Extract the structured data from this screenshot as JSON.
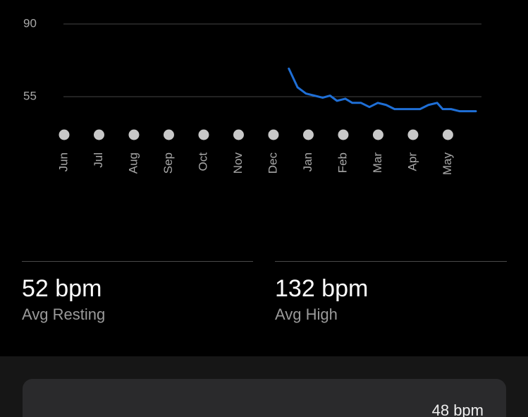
{
  "chart_data": {
    "type": "line",
    "xlim": [
      0,
      11.8
    ],
    "xticks": [
      {
        "value": 0,
        "label": "Jun"
      },
      {
        "value": 1,
        "label": "Jul"
      },
      {
        "value": 2,
        "label": "Aug"
      },
      {
        "value": 3,
        "label": "Sep"
      },
      {
        "value": 4,
        "label": "Oct"
      },
      {
        "value": 5,
        "label": "Nov"
      },
      {
        "value": 6,
        "label": "Dec"
      },
      {
        "value": 7,
        "label": "Jan"
      },
      {
        "value": 8,
        "label": "Feb"
      },
      {
        "value": 9,
        "label": "Mar"
      },
      {
        "value": 10,
        "label": "Apr"
      },
      {
        "value": 11,
        "label": "May"
      }
    ],
    "ylim": [
      45,
      90
    ],
    "yticks": [
      55,
      90
    ],
    "grid": true,
    "series": [
      {
        "name": "Resting",
        "color": "#1f6fd6",
        "x": [
          6.44,
          6.69,
          6.93,
          7.17,
          7.41,
          7.62,
          7.82,
          8.06,
          8.26,
          8.51,
          8.75,
          8.99,
          9.23,
          9.47,
          9.72,
          9.96,
          10.2,
          10.44,
          10.69,
          10.85,
          11.09,
          11.33,
          11.58,
          11.8
        ],
        "values": [
          68.5,
          59.5,
          56.5,
          55.5,
          54.5,
          55.5,
          53,
          54,
          52,
          52,
          50,
          52,
          51,
          49,
          49,
          49,
          49,
          51,
          52,
          49,
          49,
          48,
          48,
          48
        ]
      },
      {
        "name": "High",
        "color": "#e0313a",
        "x": [],
        "values": []
      }
    ]
  },
  "stats": [
    {
      "value": "52 bpm",
      "label": "Avg Resting"
    },
    {
      "value": "132 bpm",
      "label": "Avg High"
    }
  ],
  "card": {
    "value": "48 bpm"
  }
}
